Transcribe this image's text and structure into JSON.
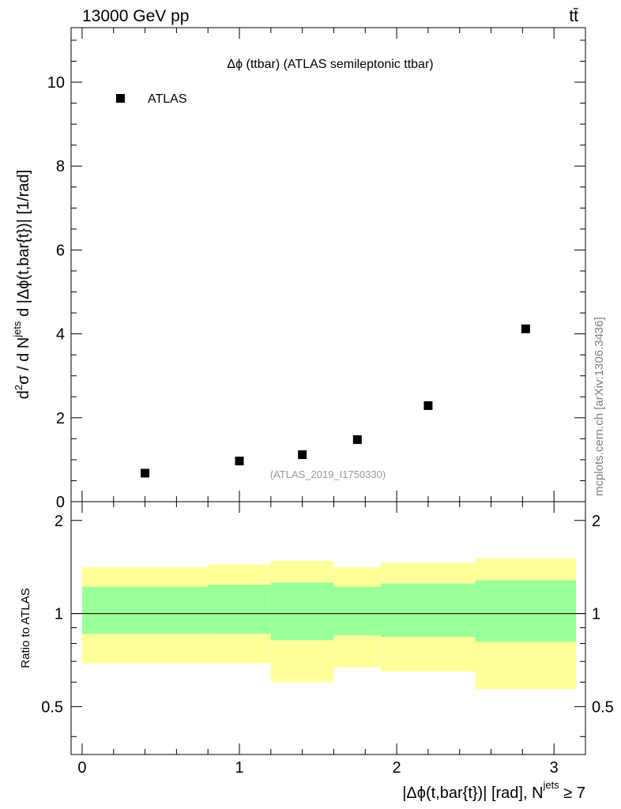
{
  "header": {
    "energy_label": "13000 GeV pp",
    "process_label": "tt̄"
  },
  "side_label": "mcplots.cern.ch [arXiv:1306.3436]",
  "chart_data": [
    {
      "type": "scatter",
      "title": "Δϕ (ttbar) (ATLAS semileptonic ttbar)",
      "ylabel_parts": {
        "prefix": "d",
        "sup2": "2",
        "sigma_part": "σ / d N",
        "jets_sup": "jets",
        "rest": " d |Δϕ(t,bar{t})| [1/rad]"
      },
      "xlim": [
        -0.07,
        3.2
      ],
      "ylim": [
        0,
        11.3
      ],
      "grid": false,
      "legend_position": "top-left",
      "y_ticks": [
        0,
        2,
        4,
        6,
        8,
        10
      ],
      "y_tick_labels": [
        "0",
        "2",
        "4",
        "6",
        "8",
        "10"
      ],
      "watermark": "(ATLAS_2019_I1750330)",
      "series": [
        {
          "name": "ATLAS",
          "marker": "square",
          "color": "#000000",
          "x": [
            0.4,
            1.0,
            1.4,
            1.75,
            2.2,
            2.82
          ],
          "y": [
            0.68,
            0.97,
            1.12,
            1.48,
            2.29,
            4.12
          ]
        }
      ]
    },
    {
      "type": "area",
      "ylabel": "Ratio to ATLAS",
      "xlabel_parts": {
        "main": "|Δϕ(t,bar{t})| [rad], N",
        "jets_sup": "jets",
        "tail": " ≥ 7"
      },
      "xlim": [
        -0.07,
        3.2
      ],
      "ylim": [
        0.35,
        2.3
      ],
      "x_ticks": [
        0,
        1,
        2,
        3
      ],
      "x_tick_labels": [
        "0",
        "1",
        "2",
        "3"
      ],
      "y_ticks": [
        0.5,
        1,
        2
      ],
      "y_tick_labels": [
        "0.5",
        "1",
        "2"
      ],
      "reference_line": 1,
      "bins": [
        {
          "x0": 0.0,
          "x1": 0.8,
          "yellow": [
            0.69,
            1.41
          ],
          "green": [
            0.86,
            1.22
          ]
        },
        {
          "x0": 0.8,
          "x1": 1.2,
          "yellow": [
            0.69,
            1.44
          ],
          "green": [
            0.86,
            1.24
          ]
        },
        {
          "x0": 1.2,
          "x1": 1.6,
          "yellow": [
            0.6,
            1.48
          ],
          "green": [
            0.82,
            1.26
          ]
        },
        {
          "x0": 1.6,
          "x1": 1.9,
          "yellow": [
            0.67,
            1.41
          ],
          "green": [
            0.85,
            1.22
          ]
        },
        {
          "x0": 1.9,
          "x1": 2.5,
          "yellow": [
            0.65,
            1.46
          ],
          "green": [
            0.84,
            1.25
          ]
        },
        {
          "x0": 2.5,
          "x1": 3.14,
          "yellow": [
            0.57,
            1.51
          ],
          "green": [
            0.81,
            1.28
          ]
        }
      ],
      "colors": {
        "yellow": "#ffff99",
        "green": "#99ff99"
      }
    }
  ]
}
